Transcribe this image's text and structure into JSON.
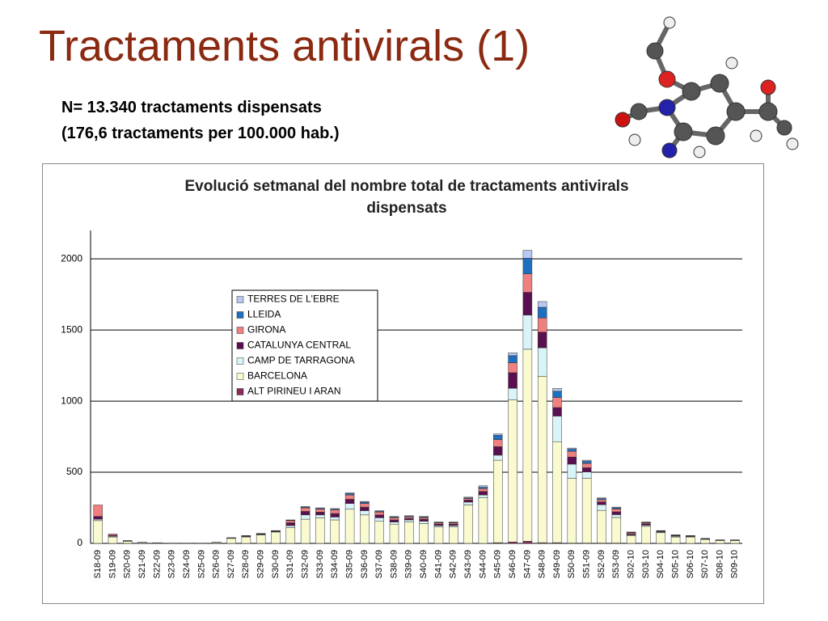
{
  "slide": {
    "title": "Tractaments antivirals (1)",
    "notes": [
      "N= 13.340 tractaments dispensats",
      "(176,6 tractaments per 100.000 hab.)"
    ]
  },
  "chart_data": {
    "type": "stacked-bar",
    "title": "Evolució setmanal del nombre total de tractaments antivirals dispensats",
    "categories": [
      "S18-09",
      "S19-09",
      "S20-09",
      "S21-09",
      "S22-09",
      "S23-09",
      "S24-09",
      "S25-09",
      "S26-09",
      "S27-09",
      "S28-09",
      "S29-09",
      "S30-09",
      "S31-09",
      "S32-09",
      "S33-09",
      "S34-09",
      "S35-09",
      "S36-09",
      "S37-09",
      "S38-09",
      "S39-09",
      "S40-09",
      "S41-09",
      "S42-09",
      "S43-09",
      "S44-09",
      "S45-09",
      "S46-09",
      "S47-09",
      "S48-09",
      "S49-09",
      "S50-09",
      "S51-09",
      "S52-09",
      "S53-09",
      "S02-10",
      "S03-10",
      "S04-10",
      "S05-10",
      "S06-10",
      "S07-10",
      "S08-10",
      "S09-10"
    ],
    "series": [
      {
        "name": "ALT PIRINEU I ARAN",
        "color": "#8b2a5a",
        "values": [
          0,
          0,
          0,
          0,
          0,
          0,
          0,
          0,
          0,
          0,
          0,
          0,
          0,
          0,
          0,
          0,
          0,
          0,
          0,
          0,
          0,
          0,
          0,
          0,
          0,
          0,
          0,
          5,
          10,
          15,
          5,
          5,
          2,
          2,
          2,
          2,
          0,
          0,
          0,
          0,
          0,
          0,
          0,
          0
        ]
      },
      {
        "name": "BARCELONA",
        "color": "#fafad0",
        "values": [
          160,
          45,
          15,
          6,
          4,
          2,
          2,
          2,
          6,
          35,
          45,
          60,
          80,
          110,
          170,
          180,
          165,
          240,
          200,
          155,
          135,
          150,
          140,
          115,
          115,
          270,
          320,
          580,
          1000,
          1350,
          1170,
          710,
          455,
          455,
          230,
          180,
          55,
          120,
          75,
          45,
          45,
          28,
          20,
          20
        ]
      },
      {
        "name": "CAMP DE TARRAGONA",
        "color": "#d8f4f8",
        "values": [
          10,
          5,
          2,
          0,
          0,
          0,
          0,
          0,
          0,
          0,
          3,
          3,
          3,
          15,
          30,
          20,
          20,
          40,
          30,
          25,
          15,
          15,
          15,
          10,
          10,
          20,
          20,
          35,
          80,
          240,
          200,
          180,
          100,
          45,
          40,
          20,
          5,
          8,
          5,
          5,
          3,
          2,
          2,
          2
        ]
      },
      {
        "name": "CATALUNYA CENTRAL",
        "color": "#5a1050",
        "values": [
          20,
          5,
          1,
          1,
          0,
          0,
          0,
          0,
          1,
          2,
          3,
          3,
          3,
          20,
          25,
          20,
          25,
          30,
          25,
          20,
          15,
          10,
          15,
          10,
          10,
          15,
          25,
          60,
          110,
          160,
          110,
          60,
          50,
          30,
          20,
          20,
          8,
          10,
          5,
          5,
          3,
          2,
          1,
          1
        ]
      },
      {
        "name": "GIRONA",
        "color": "#f08080",
        "values": [
          80,
          8,
          1,
          1,
          1,
          0,
          0,
          0,
          1,
          2,
          3,
          3,
          3,
          15,
          25,
          20,
          25,
          30,
          25,
          20,
          15,
          10,
          10,
          8,
          8,
          10,
          20,
          50,
          70,
          130,
          100,
          70,
          40,
          30,
          15,
          20,
          7,
          7,
          3,
          3,
          2,
          2,
          1,
          1
        ]
      },
      {
        "name": "LLEIDA",
        "color": "#1f6fc0",
        "values": [
          0,
          1,
          1,
          0,
          0,
          0,
          0,
          0,
          0,
          1,
          1,
          1,
          1,
          3,
          5,
          5,
          5,
          10,
          10,
          5,
          5,
          5,
          5,
          4,
          4,
          5,
          10,
          30,
          50,
          110,
          75,
          45,
          15,
          15,
          8,
          8,
          3,
          3,
          1,
          1,
          1,
          1,
          1,
          1
        ]
      },
      {
        "name": "TERRES DE L'EBRE",
        "color": "#b8c8f0",
        "values": [
          0,
          1,
          0,
          0,
          0,
          0,
          0,
          0,
          0,
          0,
          0,
          0,
          0,
          2,
          5,
          5,
          5,
          5,
          5,
          5,
          5,
          5,
          5,
          3,
          3,
          5,
          10,
          10,
          20,
          55,
          40,
          20,
          8,
          8,
          5,
          5,
          2,
          2,
          1,
          1,
          1,
          0,
          0,
          0
        ]
      }
    ],
    "ylim": [
      0,
      2200
    ],
    "yticks": [
      0,
      500,
      1000,
      1500,
      2000
    ],
    "grid": true
  }
}
